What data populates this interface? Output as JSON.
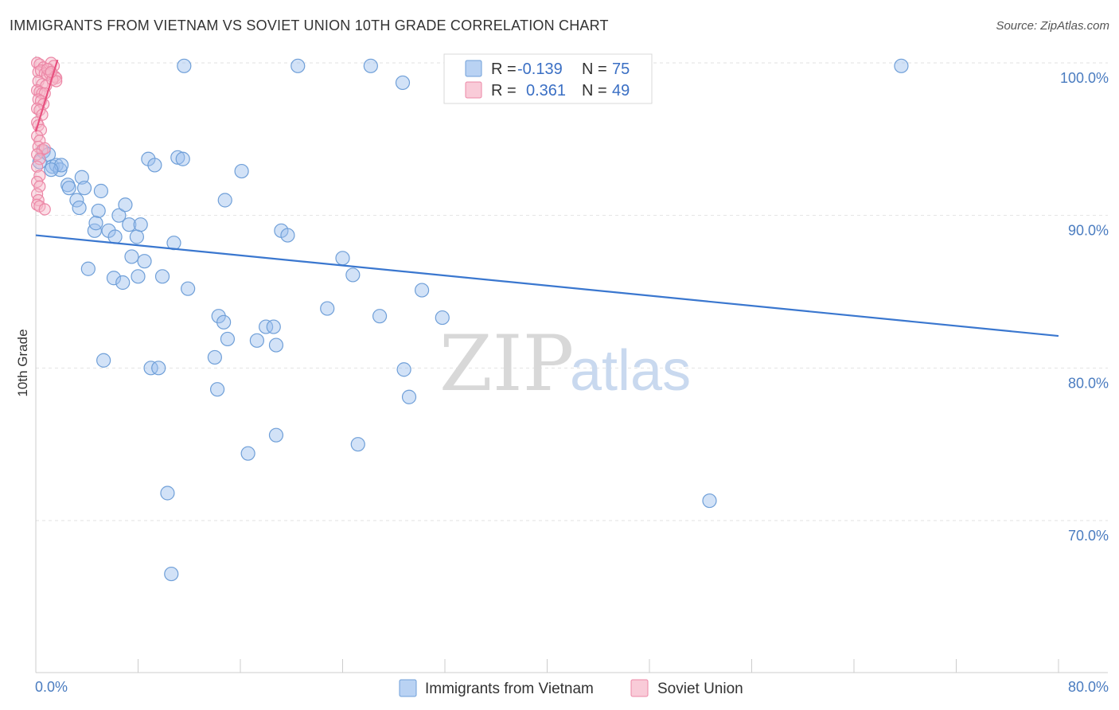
{
  "title": "IMMIGRANTS FROM VIETNAM VS SOVIET UNION 10TH GRADE CORRELATION CHART",
  "source": "Source: ZipAtlas.com",
  "watermark": {
    "zip": "ZIP",
    "atlas": "atlas"
  },
  "chart_data": {
    "type": "scatter",
    "ylabel": "10th Grade",
    "xlim": [
      0,
      80
    ],
    "ylim": [
      60,
      100
    ],
    "x_tick_labels": [
      "0.0%",
      "80.0%"
    ],
    "y_ticks": [
      70,
      80,
      90,
      100
    ],
    "y_tick_labels": [
      "70.0%",
      "80.0%",
      "90.0%",
      "100.0%"
    ],
    "grid": true,
    "legend_placement": "top-center",
    "series": [
      {
        "name": "Immigrants from Vietnam",
        "color": "#9bbfee",
        "stroke": "#6f9fd8",
        "line_color": "#3a77cf",
        "R": "-0.139",
        "N": "75",
        "trend": {
          "x": [
            0,
            80
          ],
          "y": [
            88.7,
            82.1
          ]
        },
        "points": [
          [
            0.3,
            93.5
          ],
          [
            0.6,
            94.2
          ],
          [
            1.0,
            94.0
          ],
          [
            1.3,
            93.2
          ],
          [
            1.6,
            93.3
          ],
          [
            1.9,
            93.0
          ],
          [
            2.0,
            93.3
          ],
          [
            1.2,
            93.0
          ],
          [
            2.5,
            92.0
          ],
          [
            2.6,
            91.8
          ],
          [
            3.6,
            92.5
          ],
          [
            3.8,
            91.8
          ],
          [
            5.1,
            91.6
          ],
          [
            3.2,
            91.0
          ],
          [
            3.4,
            90.5
          ],
          [
            4.9,
            90.3
          ],
          [
            6.5,
            90.0
          ],
          [
            7.0,
            90.7
          ],
          [
            4.6,
            89.0
          ],
          [
            4.7,
            89.5
          ],
          [
            5.7,
            89.0
          ],
          [
            6.2,
            88.6
          ],
          [
            7.3,
            89.4
          ],
          [
            7.9,
            88.6
          ],
          [
            8.2,
            89.4
          ],
          [
            10.8,
            88.2
          ],
          [
            7.5,
            87.3
          ],
          [
            8.5,
            87.0
          ],
          [
            4.1,
            86.5
          ],
          [
            6.1,
            85.9
          ],
          [
            6.8,
            85.6
          ],
          [
            8.0,
            86.0
          ],
          [
            9.9,
            86.0
          ],
          [
            11.9,
            85.2
          ],
          [
            14.8,
            91.0
          ],
          [
            16.1,
            92.9
          ],
          [
            8.8,
            93.7
          ],
          [
            9.3,
            93.3
          ],
          [
            11.1,
            93.8
          ],
          [
            11.5,
            93.7
          ],
          [
            11.6,
            99.8
          ],
          [
            20.5,
            99.8
          ],
          [
            26.2,
            99.8
          ],
          [
            28.7,
            98.7
          ],
          [
            36.7,
            99.9
          ],
          [
            67.7,
            99.8
          ],
          [
            19.2,
            89.0
          ],
          [
            19.7,
            88.7
          ],
          [
            24.0,
            87.2
          ],
          [
            24.8,
            86.1
          ],
          [
            30.2,
            85.1
          ],
          [
            22.8,
            83.9
          ],
          [
            26.9,
            83.4
          ],
          [
            31.8,
            83.3
          ],
          [
            14.3,
            83.4
          ],
          [
            14.7,
            83.0
          ],
          [
            14.0,
            80.7
          ],
          [
            18.0,
            82.7
          ],
          [
            18.6,
            82.7
          ],
          [
            17.3,
            81.8
          ],
          [
            15.0,
            81.9
          ],
          [
            18.8,
            81.5
          ],
          [
            5.3,
            80.5
          ],
          [
            9.0,
            80.0
          ],
          [
            9.6,
            80.0
          ],
          [
            28.8,
            79.9
          ],
          [
            14.2,
            78.6
          ],
          [
            29.2,
            78.1
          ],
          [
            18.8,
            75.6
          ],
          [
            16.6,
            74.4
          ],
          [
            25.2,
            75.0
          ],
          [
            10.3,
            71.8
          ],
          [
            52.7,
            71.3
          ],
          [
            10.6,
            66.5
          ],
          [
            43.0,
            99.9
          ]
        ]
      },
      {
        "name": "Soviet Union",
        "color": "#f7b5c8",
        "stroke": "#ec87a6",
        "line_color": "#e8517f",
        "R": "0.361",
        "N": "49",
        "trend": {
          "x": [
            0,
            1.7
          ],
          "y": [
            95.5,
            100.2
          ]
        },
        "points": [
          [
            0.1,
            100.0
          ],
          [
            0.3,
            99.9
          ],
          [
            0.6,
            99.7
          ],
          [
            1.0,
            99.6
          ],
          [
            1.2,
            100.0
          ],
          [
            1.4,
            99.8
          ],
          [
            0.2,
            99.4
          ],
          [
            0.4,
            99.5
          ],
          [
            0.7,
            99.3
          ],
          [
            0.9,
            99.2
          ],
          [
            1.1,
            99.3
          ],
          [
            1.5,
            99.1
          ],
          [
            1.6,
            99.0
          ],
          [
            0.2,
            98.8
          ],
          [
            0.5,
            98.6
          ],
          [
            0.8,
            98.5
          ],
          [
            1.3,
            98.9
          ],
          [
            1.6,
            98.8
          ],
          [
            0.1,
            98.2
          ],
          [
            0.3,
            98.1
          ],
          [
            0.5,
            98.0
          ],
          [
            0.7,
            98.0
          ],
          [
            0.2,
            97.6
          ],
          [
            0.4,
            97.5
          ],
          [
            0.6,
            97.3
          ],
          [
            0.1,
            97.0
          ],
          [
            0.3,
            96.9
          ],
          [
            0.5,
            96.6
          ],
          [
            0.1,
            96.1
          ],
          [
            0.2,
            95.9
          ],
          [
            0.4,
            95.6
          ],
          [
            0.1,
            95.2
          ],
          [
            0.3,
            94.9
          ],
          [
            0.2,
            94.5
          ],
          [
            0.5,
            94.3
          ],
          [
            0.7,
            94.4
          ],
          [
            0.1,
            94.0
          ],
          [
            0.3,
            93.7
          ],
          [
            0.1,
            93.2
          ],
          [
            0.3,
            92.6
          ],
          [
            0.1,
            92.2
          ],
          [
            0.3,
            91.9
          ],
          [
            0.1,
            91.4
          ],
          [
            0.2,
            91.0
          ],
          [
            0.1,
            90.7
          ],
          [
            0.3,
            90.6
          ],
          [
            0.7,
            90.4
          ],
          [
            0.9,
            99.6
          ],
          [
            1.2,
            99.4
          ]
        ]
      }
    ]
  },
  "legend": {
    "r_label": "R =",
    "n_label": "N ="
  }
}
